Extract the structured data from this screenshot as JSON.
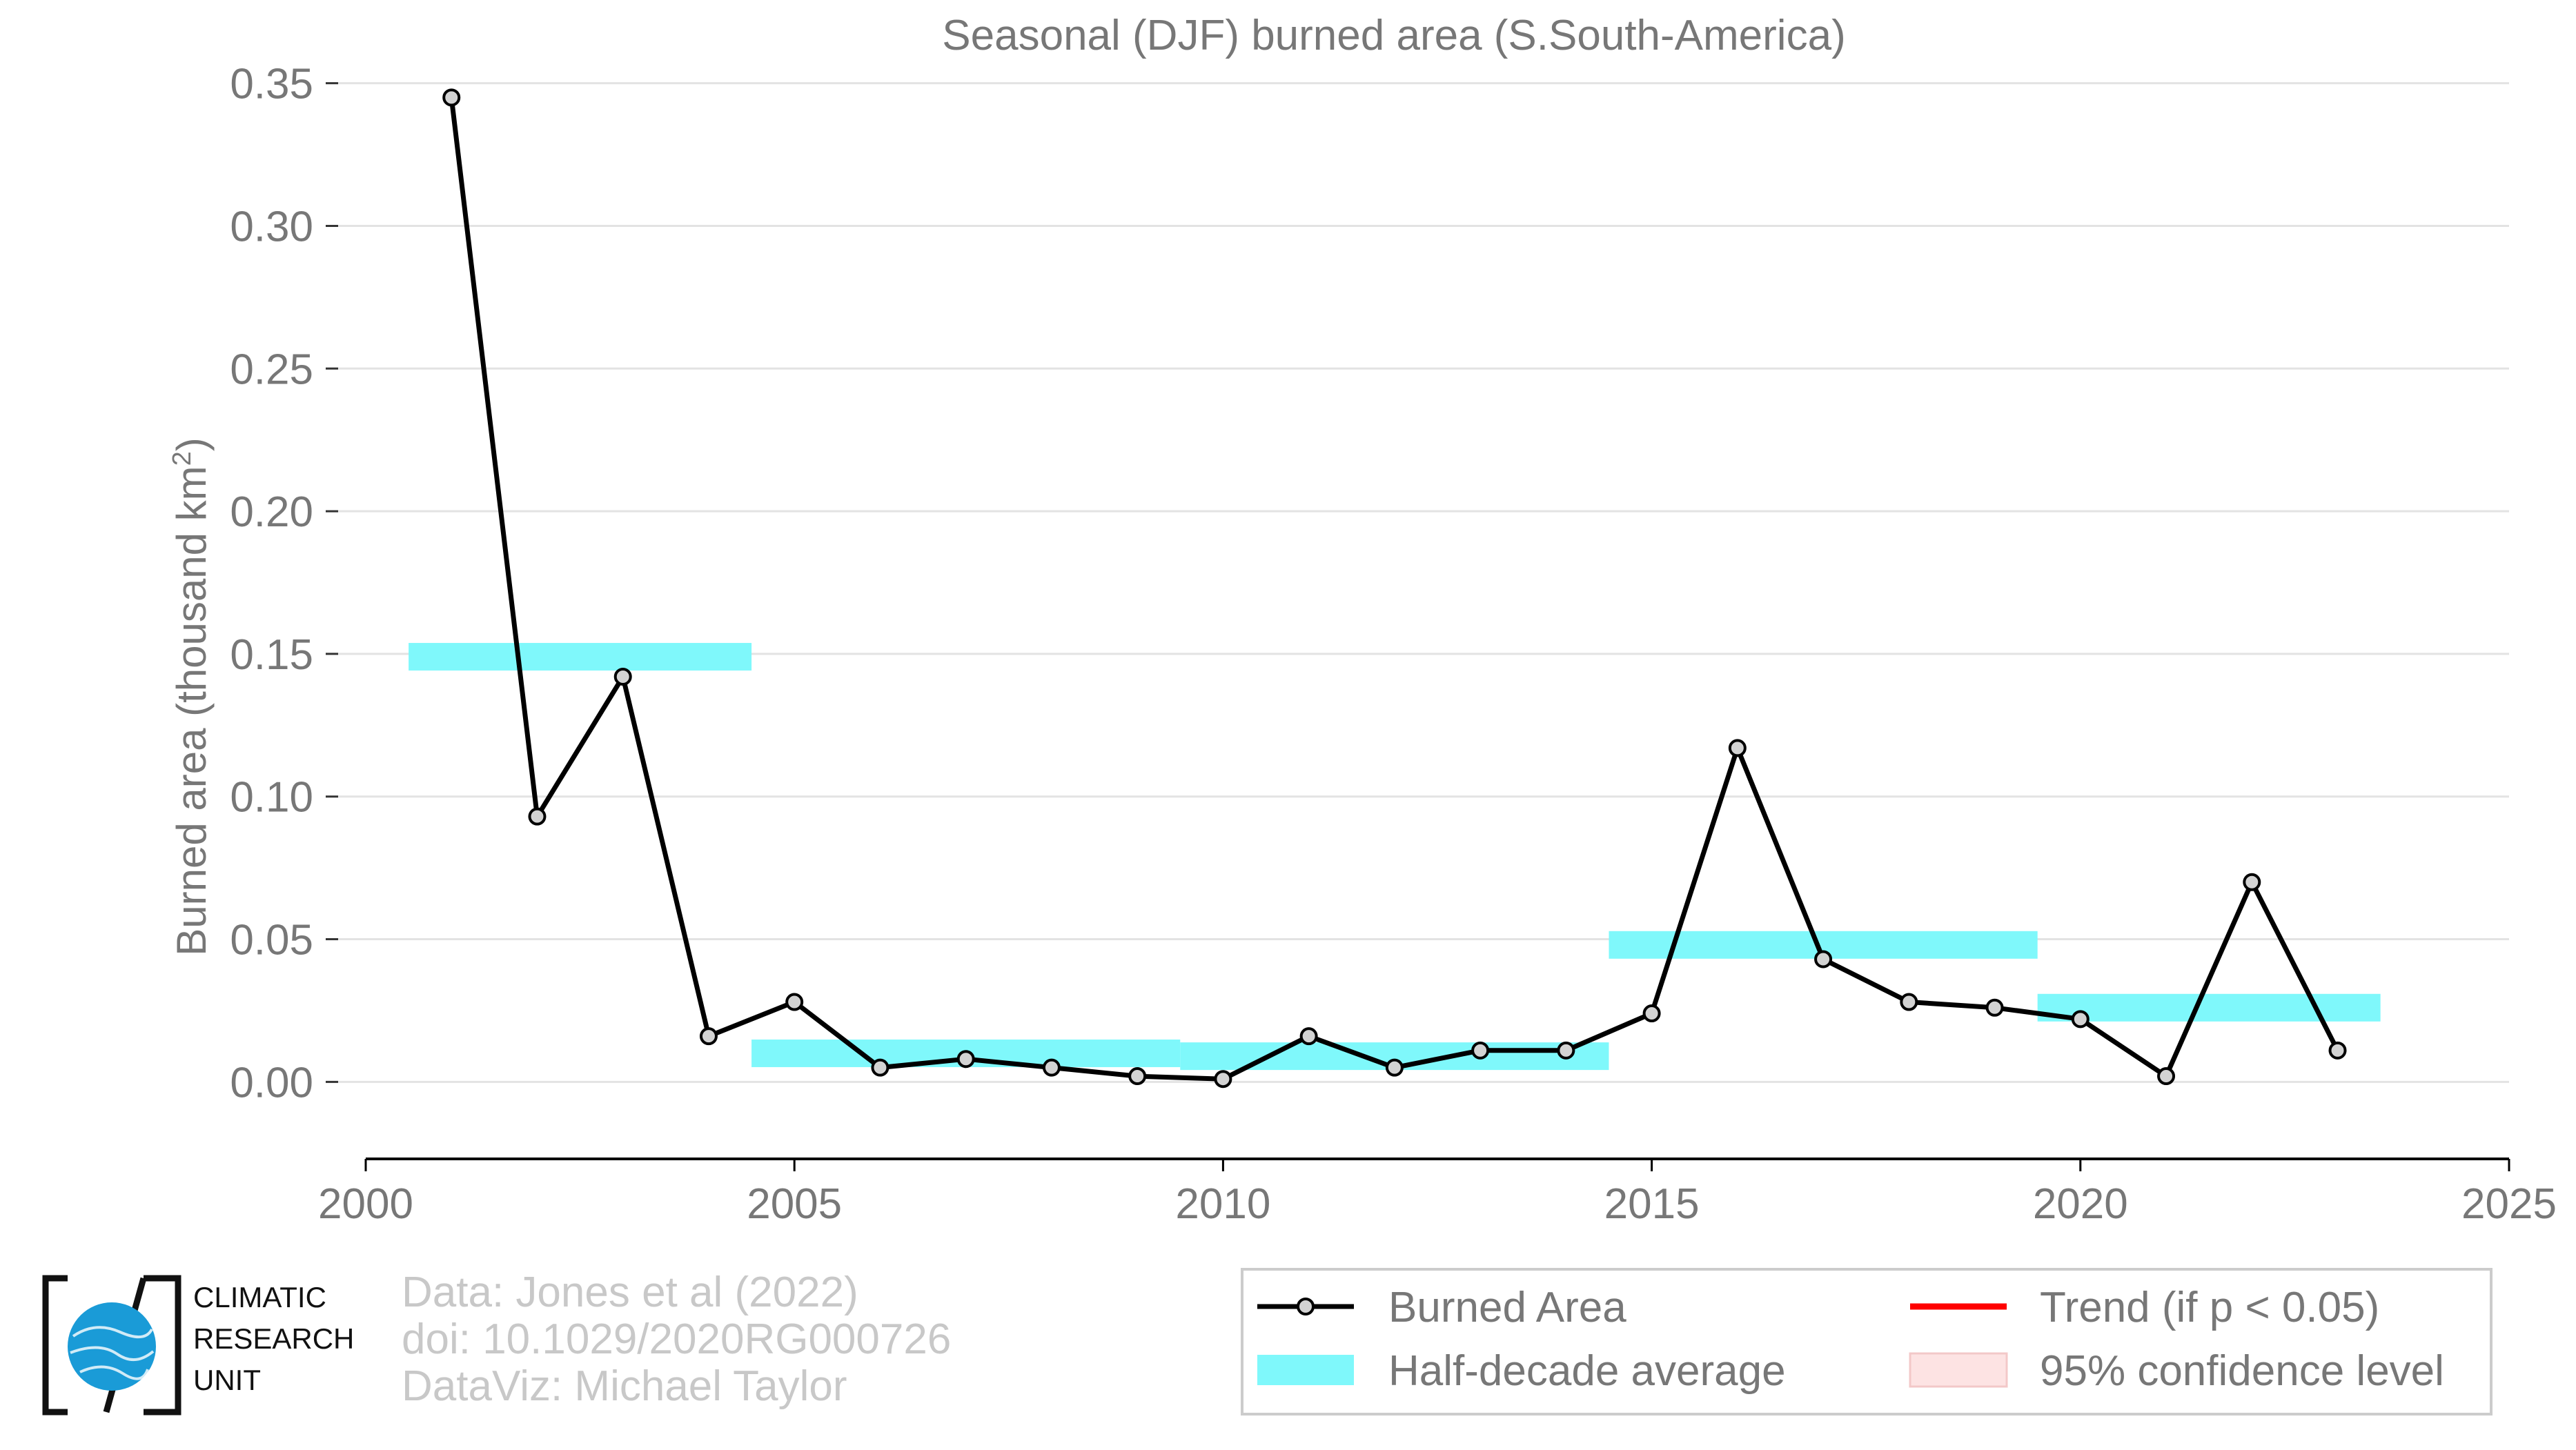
{
  "chart_data": {
    "type": "line",
    "title": "Seasonal (DJF) burned area (S.South-America)",
    "ylabel": "Burned area (thousand km",
    "ylabel_sup": "2",
    "ylabel_close": ")",
    "xlabel": "",
    "xlim": [
      2000,
      2025
    ],
    "ylim": [
      -0.027,
      0.355
    ],
    "x_ticks": [
      "2000",
      "2005",
      "2010",
      "2015",
      "2020",
      "2025"
    ],
    "y_ticks": [
      "0.00",
      "0.05",
      "0.10",
      "0.15",
      "0.20",
      "0.25",
      "0.30",
      "0.35"
    ],
    "grid": true,
    "series": [
      {
        "name": "Burned Area",
        "color": "#000000",
        "x": [
          2001,
          2002,
          2003,
          2004,
          2005,
          2006,
          2007,
          2008,
          2009,
          2010,
          2011,
          2012,
          2013,
          2014,
          2015,
          2016,
          2017,
          2018,
          2019,
          2020,
          2021,
          2022,
          2023
        ],
        "y": [
          0.345,
          0.093,
          0.142,
          0.016,
          0.028,
          0.005,
          0.008,
          0.005,
          0.002,
          0.001,
          0.016,
          0.005,
          0.011,
          0.011,
          0.024,
          0.117,
          0.043,
          0.028,
          0.026,
          0.022,
          0.002,
          0.07,
          0.011
        ]
      }
    ],
    "half_decade_average": {
      "name": "Half-decade average",
      "color": "#7ff8fb",
      "segments": [
        {
          "x0": 2000.5,
          "x1": 2004.5,
          "y": 0.149
        },
        {
          "x0": 2004.5,
          "x1": 2009.5,
          "y": 0.01
        },
        {
          "x0": 2009.5,
          "x1": 2014.5,
          "y": 0.009
        },
        {
          "x0": 2014.5,
          "x1": 2019.5,
          "y": 0.048
        },
        {
          "x0": 2019.5,
          "x1": 2023.5,
          "y": 0.026
        }
      ]
    },
    "legend": {
      "placement": "bottom-right",
      "items": [
        {
          "label": "Burned Area",
          "kind": "line-marker",
          "color": "#000000"
        },
        {
          "label": "Trend (if p < 0.05)",
          "kind": "line",
          "color": "#ff0000"
        },
        {
          "label": "Half-decade average",
          "kind": "band",
          "color": "#7ff8fb"
        },
        {
          "label": "95% confidence level",
          "kind": "band",
          "color": "#fde3e3"
        }
      ]
    }
  },
  "credits": {
    "line1": "Data: Jones et al (2022)",
    "line2": "doi: 10.1029/2020RG000726",
    "line3": "DataViz: Michael Taylor"
  },
  "logo": {
    "line1": "CLIMATIC",
    "line2": "RESEARCH",
    "line3": "UNIT",
    "globe_color": "#1a9bd7"
  }
}
